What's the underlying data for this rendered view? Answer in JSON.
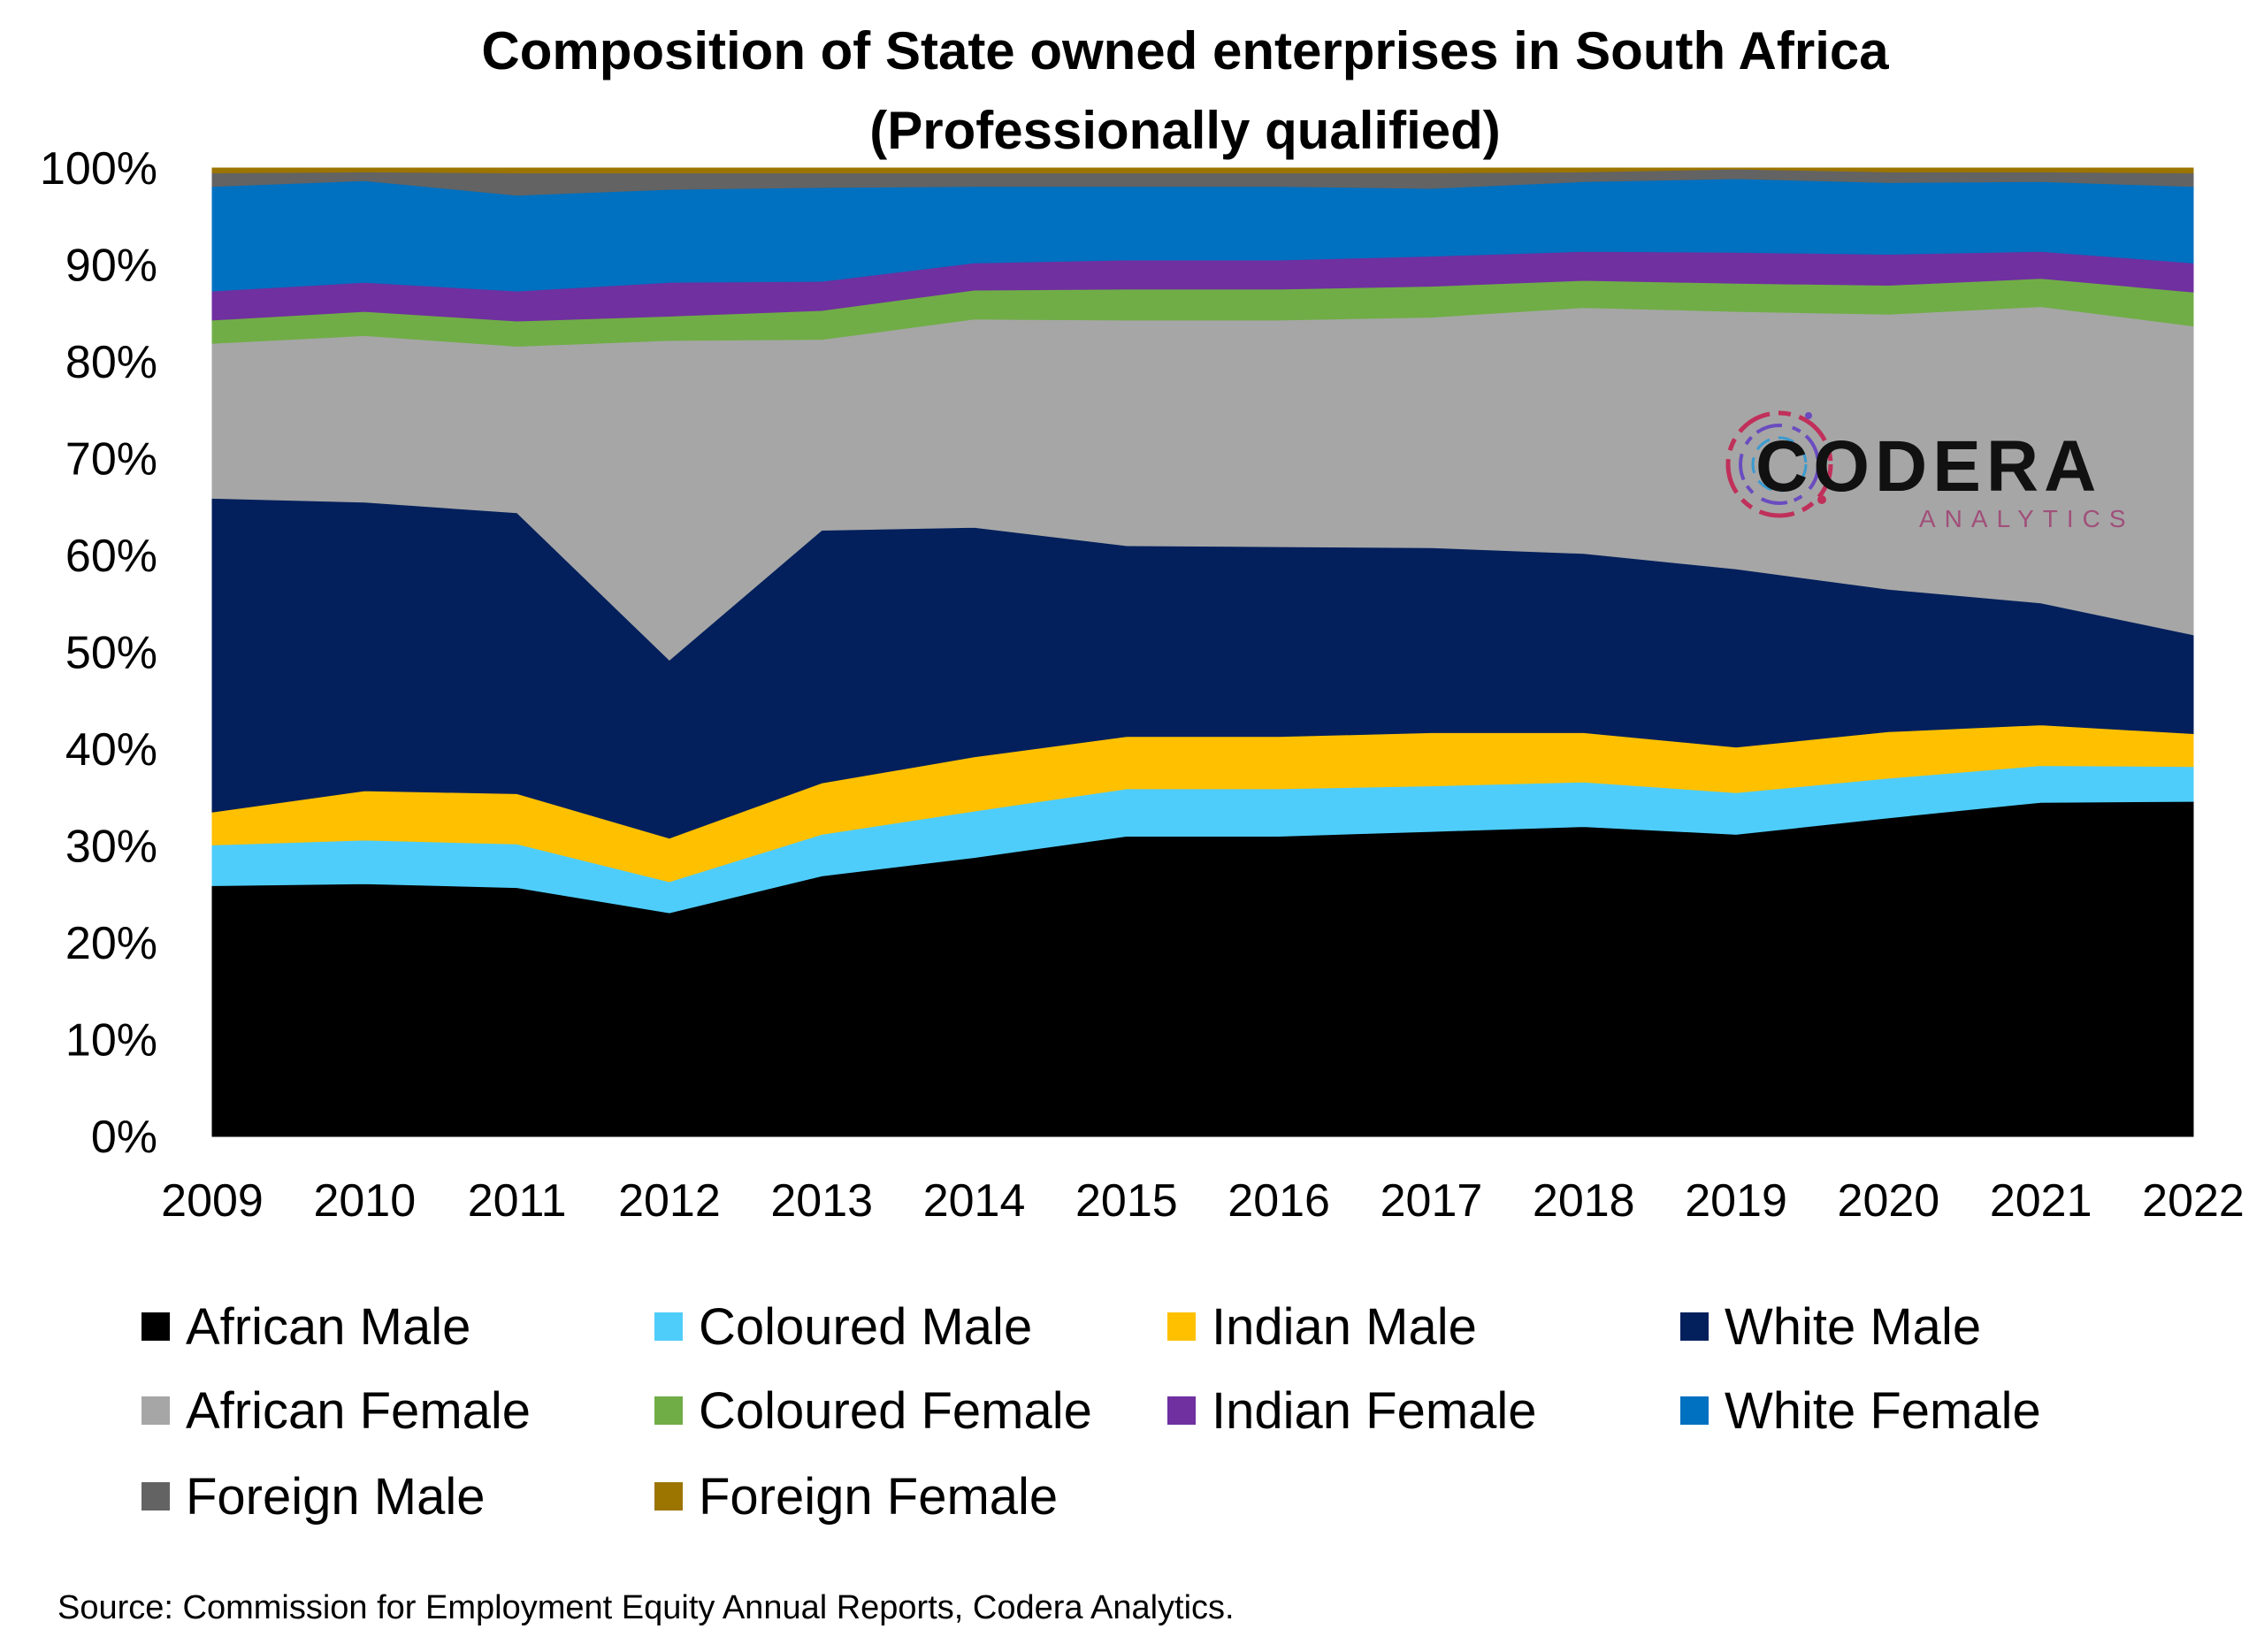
{
  "chart_data": {
    "type": "area",
    "stacked": true,
    "normalized": true,
    "title_lines": [
      "Composition of State owned enterprises in South Africa",
      "(Professionally qualified)"
    ],
    "xlabel": "",
    "ylabel": "",
    "ylim": [
      0,
      100
    ],
    "yticks": [
      "0%",
      "10%",
      "20%",
      "30%",
      "40%",
      "50%",
      "60%",
      "70%",
      "80%",
      "90%",
      "100%"
    ],
    "categories": [
      "2009",
      "2010",
      "2011",
      "2012",
      "2013",
      "2014",
      "2015",
      "2016",
      "2017",
      "2018",
      "2019",
      "2020",
      "2021",
      "2022"
    ],
    "legend_position": "bottom",
    "grid": false,
    "series": [
      {
        "name": "African Male",
        "color": "#000000",
        "values": [
          25.9,
          26.1,
          25.7,
          23.1,
          26.9,
          28.8,
          31.0,
          31.0,
          31.5,
          32.0,
          31.2,
          32.9,
          34.5,
          34.6
        ]
      },
      {
        "name": "Coloured Male",
        "color": "#4fcdfa",
        "values": [
          4.2,
          4.5,
          4.5,
          3.2,
          4.3,
          4.8,
          4.9,
          4.9,
          4.7,
          4.6,
          4.3,
          4.1,
          3.8,
          3.6
        ]
      },
      {
        "name": "Indian Male",
        "color": "#ffc000",
        "values": [
          3.4,
          5.1,
          5.2,
          4.5,
          5.3,
          5.6,
          5.4,
          5.4,
          5.5,
          5.1,
          4.7,
          4.8,
          4.2,
          3.4
        ]
      },
      {
        "name": "White Male",
        "color": "#03205c",
        "values": [
          32.4,
          29.8,
          29.0,
          18.4,
          26.1,
          23.7,
          19.7,
          19.6,
          19.1,
          18.5,
          18.4,
          14.7,
          12.6,
          10.2
        ]
      },
      {
        "name": "African Female",
        "color": "#a6a6a6",
        "values": [
          16.0,
          17.2,
          17.2,
          33.0,
          19.7,
          21.5,
          23.3,
          23.4,
          23.8,
          25.4,
          26.6,
          28.4,
          30.6,
          31.9
        ]
      },
      {
        "name": "Coloured Female",
        "color": "#70ad47",
        "values": [
          2.4,
          2.5,
          2.6,
          2.5,
          3.0,
          3.0,
          3.2,
          3.2,
          3.2,
          2.8,
          2.9,
          3.0,
          2.9,
          3.5
        ]
      },
      {
        "name": "Indian Female",
        "color": "#7030a0",
        "values": [
          3.0,
          3.0,
          3.1,
          3.5,
          3.0,
          2.8,
          3.0,
          3.0,
          3.1,
          3.0,
          3.2,
          3.2,
          2.8,
          3.0
        ]
      },
      {
        "name": "White Female",
        "color": "#0070c0",
        "values": [
          10.8,
          10.5,
          9.9,
          9.6,
          9.7,
          7.9,
          7.6,
          7.6,
          7.0,
          7.2,
          7.6,
          7.4,
          7.2,
          7.9
        ]
      },
      {
        "name": "Foreign Male",
        "color": "#636363",
        "values": [
          1.4,
          0.9,
          2.3,
          1.7,
          1.5,
          1.4,
          1.4,
          1.4,
          1.6,
          1.0,
          1.0,
          1.1,
          1.0,
          1.4
        ]
      },
      {
        "name": "Foreign Female",
        "color": "#9c7400",
        "values": [
          0.5,
          0.4,
          0.5,
          0.5,
          0.5,
          0.5,
          0.5,
          0.5,
          0.5,
          0.4,
          0.1,
          0.4,
          0.4,
          0.5
        ]
      }
    ],
    "source": "Source: Commission for Employment Equity Annual Reports, Codera Analytics."
  },
  "logo": {
    "name": "CODERA",
    "subtitle": "ANALYTICS",
    "icon": "circuit-ring-icon",
    "colors": [
      "#c0305a",
      "#6a4cc0",
      "#3a9ad0"
    ]
  }
}
